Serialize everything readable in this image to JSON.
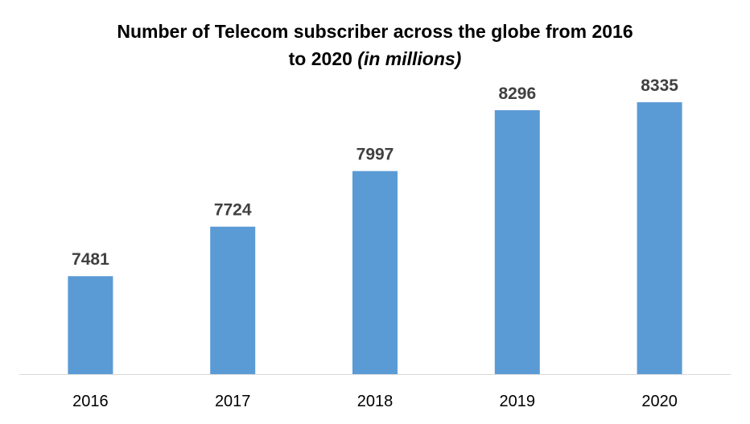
{
  "chart_data": {
    "type": "bar",
    "title_line1": "Number of Telecom subscriber across the globe from 2016",
    "title_line2": "to 2020",
    "title_unit": "(in millions)",
    "categories": [
      "2016",
      "2017",
      "2018",
      "2019",
      "2020"
    ],
    "values": [
      7481,
      7724,
      7997,
      8296,
      8335
    ],
    "xlabel": "",
    "ylabel": "",
    "ylim": [
      7000,
      8600
    ],
    "y_axis_visible": false,
    "grid": false,
    "legend": "none",
    "bar_color": "#5B9BD5",
    "label_color": "#404040"
  }
}
